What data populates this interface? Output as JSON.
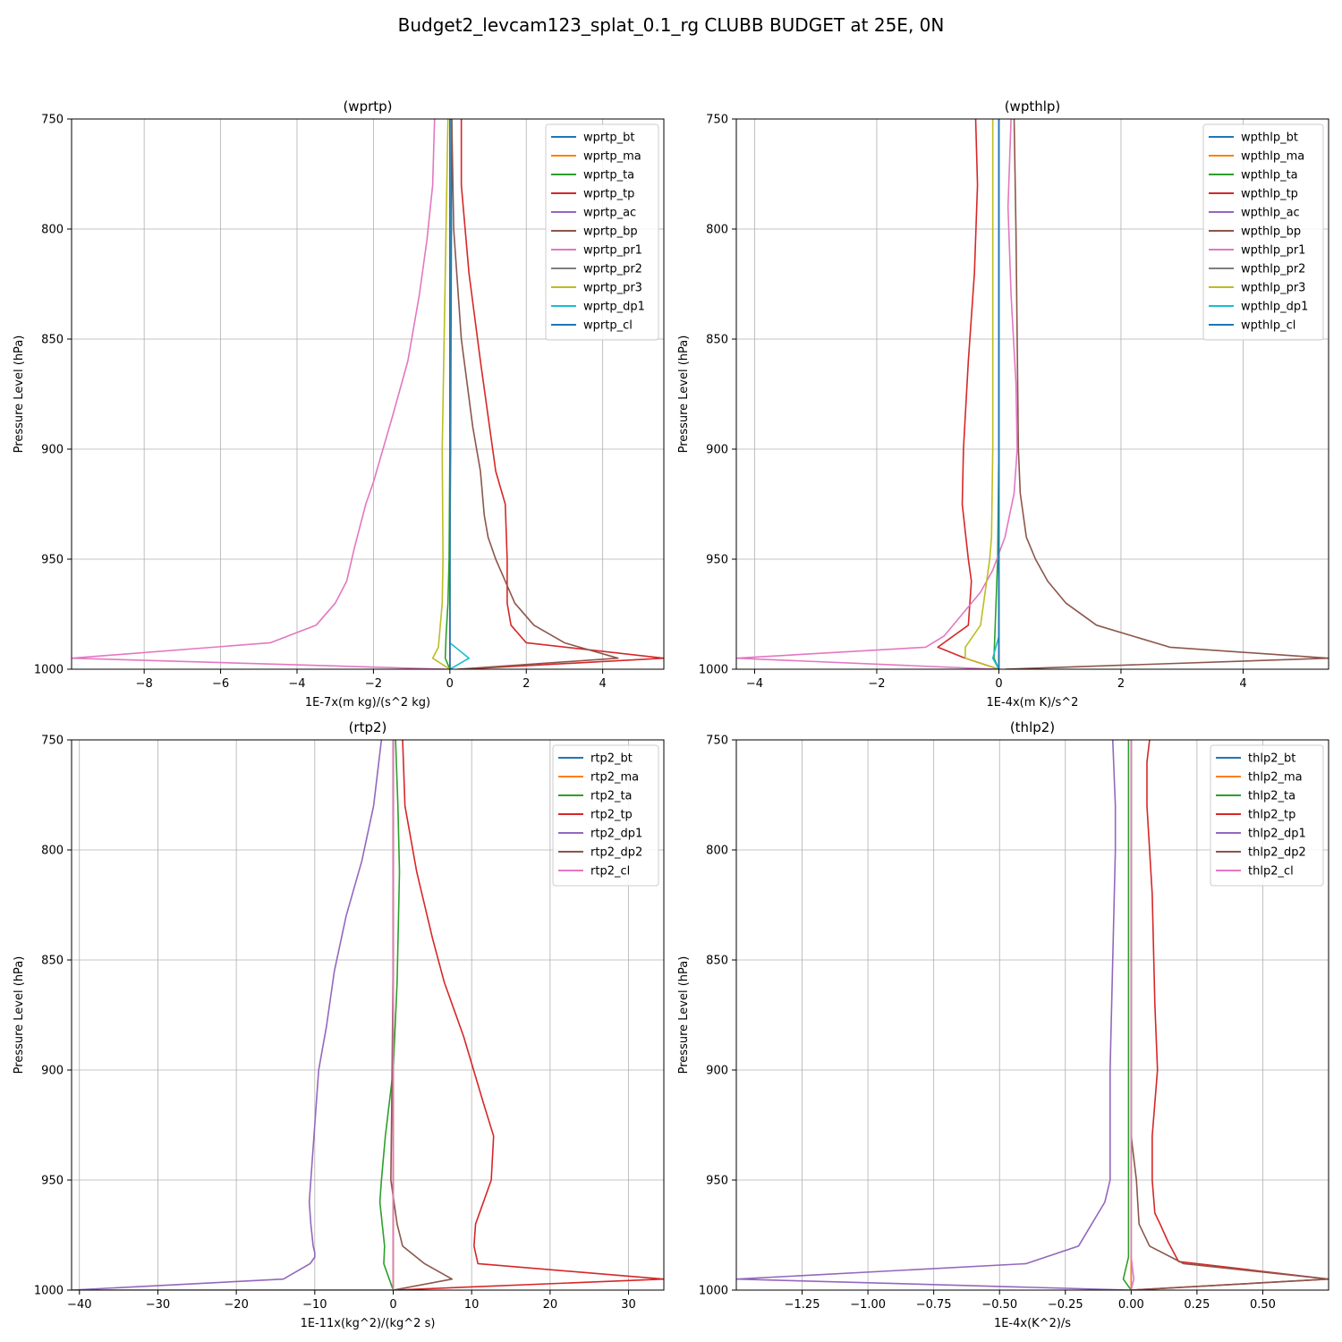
{
  "figure": {
    "title": "Budget2_levcam123_splat_0.1_rg CLUBB BUDGET at 25E, 0N"
  },
  "chart_data": [
    {
      "type": "line",
      "title": "(wprtp)",
      "xlabel": "1E-7x(m kg)/(s^2 kg)",
      "ylabel": "Pressure Level (hPa)",
      "xlim": [
        -9.9,
        5.6
      ],
      "ylim": [
        1000,
        750
      ],
      "y_inverted": true,
      "xticks": [
        -8,
        -6,
        -4,
        -2,
        0,
        2,
        4
      ],
      "yticks": [
        750,
        800,
        850,
        900,
        950,
        1000
      ],
      "grid": true,
      "legend": "upper right",
      "series": [
        {
          "name": "wprtp_bt",
          "color": "#1f77b4",
          "x": [
            0.05,
            0.04,
            0.03,
            0.02,
            0.0,
            0.0,
            0.0,
            0.0
          ],
          "y": [
            750,
            800,
            850,
            900,
            950,
            985,
            995,
            1000
          ]
        },
        {
          "name": "wprtp_ma",
          "color": "#ff7f0e",
          "x": [
            0.0,
            0.0,
            0.0,
            0.0,
            0.0,
            0.0,
            0.0
          ],
          "y": [
            750,
            800,
            850,
            900,
            950,
            995,
            1000
          ]
        },
        {
          "name": "wprtp_ta",
          "color": "#2ca02c",
          "x": [
            0.0,
            0.0,
            0.0,
            0.0,
            -0.02,
            -0.05,
            -0.1,
            -0.12,
            0.0
          ],
          "y": [
            750,
            800,
            850,
            900,
            950,
            970,
            985,
            995,
            1000
          ]
        },
        {
          "name": "wprtp_tp",
          "color": "#d62728",
          "x": [
            0.3,
            0.3,
            0.5,
            0.8,
            1.2,
            1.45,
            1.5,
            1.5,
            1.6,
            2.0,
            5.6,
            0.3
          ],
          "y": [
            750,
            780,
            820,
            860,
            910,
            925,
            950,
            970,
            980,
            988,
            995,
            1000
          ]
        },
        {
          "name": "wprtp_ac",
          "color": "#9467bd",
          "x": [
            0.0,
            0.0,
            0.0,
            0.0,
            0.0,
            0.0
          ],
          "y": [
            750,
            800,
            850,
            900,
            950,
            1000
          ]
        },
        {
          "name": "wprtp_bp",
          "color": "#8c564b",
          "x": [
            0.05,
            0.1,
            0.3,
            0.6,
            0.8,
            0.9,
            1.0,
            1.2,
            1.7,
            2.2,
            3.0,
            4.4,
            0.2
          ],
          "y": [
            750,
            800,
            850,
            890,
            910,
            930,
            940,
            950,
            970,
            980,
            988,
            995,
            1000
          ]
        },
        {
          "name": "wprtp_pr1",
          "color": "#e377c2",
          "x": [
            -0.4,
            -0.45,
            -0.6,
            -0.8,
            -1.1,
            -1.5,
            -2.0,
            -2.2,
            -2.5,
            -2.7,
            -3.0,
            -3.5,
            -4.7,
            -9.9,
            -0.1
          ],
          "y": [
            750,
            780,
            805,
            830,
            860,
            885,
            915,
            925,
            945,
            960,
            970,
            980,
            988,
            995,
            1000
          ]
        },
        {
          "name": "wprtp_pr2",
          "color": "#7f7f7f",
          "x": [
            0.0,
            0.0,
            0.0,
            0.0,
            0.0,
            0.0
          ],
          "y": [
            750,
            800,
            850,
            900,
            950,
            1000
          ]
        },
        {
          "name": "wprtp_pr3",
          "color": "#bcbd22",
          "x": [
            -0.05,
            -0.1,
            -0.15,
            -0.2,
            -0.18,
            -0.2,
            -0.25,
            -0.3,
            -0.45,
            0.0
          ],
          "y": [
            750,
            800,
            850,
            900,
            950,
            970,
            980,
            990,
            995,
            1000
          ]
        },
        {
          "name": "wprtp_dp1",
          "color": "#17becf",
          "x": [
            0.0,
            0.0,
            0.0,
            0.0,
            0.0,
            0.5,
            0.0
          ],
          "y": [
            750,
            850,
            950,
            980,
            988,
            995,
            1000
          ]
        },
        {
          "name": "wprtp_cl",
          "color": "#1f77b4",
          "x": [
            0.0,
            0.0,
            0.0,
            0.0,
            0.0,
            0.0
          ],
          "y": [
            750,
            800,
            850,
            900,
            950,
            1000
          ]
        }
      ]
    },
    {
      "type": "line",
      "title": "(wpthlp)",
      "xlabel": "1E-4x(m K)/s^2",
      "ylabel": "Pressure Level (hPa)",
      "xlim": [
        -4.3,
        5.4
      ],
      "ylim": [
        1000,
        750
      ],
      "y_inverted": true,
      "xticks": [
        -4,
        -2,
        0,
        2,
        4
      ],
      "yticks": [
        750,
        800,
        850,
        900,
        950,
        1000
      ],
      "grid": true,
      "legend": "upper right",
      "series": [
        {
          "name": "wpthlp_bt",
          "color": "#1f77b4",
          "x": [
            0.0,
            0.0,
            0.0,
            0.0,
            0.0,
            0.0
          ],
          "y": [
            750,
            800,
            850,
            900,
            950,
            1000
          ]
        },
        {
          "name": "wpthlp_ma",
          "color": "#ff7f0e",
          "x": [
            0.0,
            0.0,
            0.0,
            0.0,
            0.0,
            0.0
          ],
          "y": [
            750,
            800,
            850,
            900,
            950,
            1000
          ]
        },
        {
          "name": "wpthlp_ta",
          "color": "#2ca02c",
          "x": [
            0.0,
            0.0,
            0.0,
            0.0,
            -0.02,
            -0.06,
            -0.08,
            0.0
          ],
          "y": [
            750,
            800,
            850,
            900,
            950,
            980,
            995,
            1000
          ]
        },
        {
          "name": "wpthlp_tp",
          "color": "#d62728",
          "x": [
            -0.38,
            -0.35,
            -0.4,
            -0.5,
            -0.58,
            -0.6,
            -0.5,
            -0.45,
            -0.5,
            -1.0,
            -0.55,
            0.0
          ],
          "y": [
            750,
            780,
            820,
            860,
            900,
            925,
            950,
            960,
            980,
            990,
            995,
            1000
          ]
        },
        {
          "name": "wpthlp_ac",
          "color": "#9467bd",
          "x": [
            0.0,
            0.0,
            0.0,
            0.0,
            0.0,
            0.0
          ],
          "y": [
            750,
            800,
            850,
            900,
            950,
            1000
          ]
        },
        {
          "name": "wpthlp_bp",
          "color": "#8c564b",
          "x": [
            0.25,
            0.28,
            0.3,
            0.32,
            0.35,
            0.45,
            0.6,
            0.8,
            1.1,
            1.6,
            2.8,
            5.4,
            0.1
          ],
          "y": [
            750,
            800,
            850,
            900,
            920,
            940,
            950,
            960,
            970,
            980,
            990,
            995,
            1000
          ]
        },
        {
          "name": "wpthlp_pr1",
          "color": "#e377c2",
          "x": [
            0.2,
            0.15,
            0.2,
            0.28,
            0.3,
            0.25,
            0.1,
            -0.1,
            -0.3,
            -0.6,
            -0.9,
            -1.2,
            -4.3,
            -0.05
          ],
          "y": [
            750,
            790,
            830,
            870,
            900,
            920,
            940,
            955,
            965,
            975,
            985,
            990,
            995,
            1000
          ]
        },
        {
          "name": "wpthlp_pr2",
          "color": "#7f7f7f",
          "x": [
            0.0,
            0.0,
            0.0,
            0.0,
            0.0,
            0.0
          ],
          "y": [
            750,
            800,
            850,
            900,
            950,
            1000
          ]
        },
        {
          "name": "wpthlp_pr3",
          "color": "#bcbd22",
          "x": [
            -0.1,
            -0.1,
            -0.1,
            -0.1,
            -0.12,
            -0.15,
            -0.2,
            -0.3,
            -0.55,
            -0.55,
            0.0
          ],
          "y": [
            750,
            800,
            850,
            900,
            940,
            950,
            960,
            980,
            990,
            995,
            1000
          ]
        },
        {
          "name": "wpthlp_dp1",
          "color": "#17becf",
          "x": [
            0.0,
            0.0,
            0.0,
            0.0,
            -0.1,
            0.0
          ],
          "y": [
            750,
            850,
            950,
            985,
            995,
            1000
          ]
        },
        {
          "name": "wpthlp_cl",
          "color": "#1f77b4",
          "x": [
            0.0,
            0.0,
            0.0,
            0.0,
            0.0,
            0.0
          ],
          "y": [
            750,
            800,
            850,
            900,
            950,
            1000
          ]
        }
      ]
    },
    {
      "type": "line",
      "title": "(rtp2)",
      "xlabel": "1E-11x(kg^2)/(kg^2 s)",
      "ylabel": "Pressure Level (hPa)",
      "xlim": [
        -41,
        34.5
      ],
      "ylim": [
        1000,
        750
      ],
      "y_inverted": true,
      "xticks": [
        -40,
        -30,
        -20,
        -10,
        0,
        10,
        20,
        30
      ],
      "yticks": [
        750,
        800,
        850,
        900,
        950,
        1000
      ],
      "grid": true,
      "legend": "upper right",
      "series": [
        {
          "name": "rtp2_bt",
          "color": "#1f77b4",
          "x": [
            0.0,
            0.0,
            0.0,
            0.0,
            0.0,
            0.0
          ],
          "y": [
            750,
            800,
            850,
            900,
            950,
            1000
          ]
        },
        {
          "name": "rtp2_ma",
          "color": "#ff7f0e",
          "x": [
            0.0,
            0.0,
            0.0,
            0.0,
            0.0,
            0.0
          ],
          "y": [
            750,
            800,
            850,
            900,
            950,
            1000
          ]
        },
        {
          "name": "rtp2_ta",
          "color": "#2ca02c",
          "x": [
            0.3,
            0.6,
            0.8,
            0.5,
            0.0,
            -1.0,
            -1.5,
            -1.7,
            -1.4,
            -1.1,
            -1.2,
            -0.5,
            0.0
          ],
          "y": [
            750,
            780,
            810,
            860,
            900,
            930,
            950,
            960,
            970,
            980,
            988,
            995,
            1000
          ]
        },
        {
          "name": "rtp2_tp",
          "color": "#d62728",
          "x": [
            1.2,
            1.5,
            3.0,
            5.0,
            6.5,
            9.0,
            11.5,
            12.8,
            12.5,
            10.5,
            10.3,
            10.8,
            34.5,
            0.0
          ],
          "y": [
            750,
            780,
            810,
            840,
            860,
            885,
            915,
            930,
            950,
            970,
            980,
            988,
            995,
            1000
          ]
        },
        {
          "name": "rtp2_dp1",
          "color": "#9467bd",
          "x": [
            -1.5,
            -2.5,
            -4.0,
            -6.0,
            -7.5,
            -8.5,
            -9.5,
            -10.0,
            -10.5,
            -10.7,
            -10.5,
            -10.2,
            -10.0,
            -10.0,
            -10.6,
            -14.0,
            -41.0,
            0.0
          ],
          "y": [
            750,
            780,
            805,
            830,
            855,
            880,
            900,
            925,
            950,
            960,
            970,
            980,
            983,
            985,
            988,
            995,
            1000,
            1000
          ]
        },
        {
          "name": "rtp2_dp2",
          "color": "#8c564b",
          "x": [
            0.0,
            0.0,
            -0.2,
            -0.3,
            0.5,
            1.2,
            4.0,
            7.5,
            0.0
          ],
          "y": [
            750,
            850,
            920,
            950,
            970,
            980,
            988,
            995,
            1000
          ]
        },
        {
          "name": "rtp2_cl",
          "color": "#e377c2",
          "x": [
            0.0,
            0.0,
            0.0,
            0.0,
            0.0,
            0.0
          ],
          "y": [
            750,
            800,
            850,
            900,
            950,
            1000
          ]
        }
      ]
    },
    {
      "type": "line",
      "title": "(thlp2)",
      "xlabel": "1E-4x(K^2)/s",
      "ylabel": "Pressure Level (hPa)",
      "xlim": [
        -1.5,
        0.75
      ],
      "ylim": [
        1000,
        750
      ],
      "y_inverted": true,
      "xticks": [
        -1.25,
        -1.0,
        -0.75,
        -0.5,
        -0.25,
        0.0,
        0.25,
        0.5
      ],
      "yticks": [
        750,
        800,
        850,
        900,
        950,
        1000
      ],
      "grid": true,
      "legend": "upper right",
      "series": [
        {
          "name": "thlp2_bt",
          "color": "#1f77b4",
          "x": [
            0.0,
            0.0,
            0.0,
            0.0,
            0.0,
            0.0
          ],
          "y": [
            750,
            800,
            850,
            900,
            950,
            1000
          ]
        },
        {
          "name": "thlp2_ma",
          "color": "#ff7f0e",
          "x": [
            0.0,
            0.0,
            0.0,
            0.0,
            0.0,
            0.0
          ],
          "y": [
            750,
            800,
            850,
            900,
            950,
            1000
          ]
        },
        {
          "name": "thlp2_ta",
          "color": "#2ca02c",
          "x": [
            -0.01,
            -0.01,
            -0.01,
            -0.01,
            -0.01,
            -0.01,
            -0.03,
            0.0
          ],
          "y": [
            750,
            800,
            850,
            900,
            950,
            985,
            995,
            1000
          ]
        },
        {
          "name": "thlp2_tp",
          "color": "#d62728",
          "x": [
            0.07,
            0.06,
            0.06,
            0.08,
            0.09,
            0.1,
            0.09,
            0.08,
            0.08,
            0.09,
            0.11,
            0.14,
            0.18,
            0.75,
            0.0
          ],
          "y": [
            750,
            760,
            780,
            820,
            870,
            900,
            915,
            930,
            950,
            965,
            970,
            978,
            987,
            995,
            1000
          ]
        },
        {
          "name": "thlp2_dp1",
          "color": "#9467bd",
          "x": [
            -0.07,
            -0.06,
            -0.06,
            -0.07,
            -0.08,
            -0.08,
            -0.08,
            -0.09,
            -0.1,
            -0.15,
            -0.2,
            -0.4,
            -1.5,
            0.0
          ],
          "y": [
            750,
            780,
            800,
            850,
            900,
            930,
            950,
            955,
            960,
            970,
            980,
            988,
            995,
            1000
          ]
        },
        {
          "name": "thlp2_dp2",
          "color": "#8c564b",
          "x": [
            0.0,
            0.0,
            0.0,
            0.02,
            0.03,
            0.07,
            0.2,
            0.75,
            0.0
          ],
          "y": [
            750,
            850,
            930,
            950,
            970,
            980,
            988,
            995,
            1000
          ]
        },
        {
          "name": "thlp2_cl",
          "color": "#e377c2",
          "x": [
            0.0,
            0.0,
            0.0,
            0.0,
            0.0,
            0.0,
            0.01,
            0.0
          ],
          "y": [
            750,
            800,
            850,
            900,
            950,
            985,
            995,
            1000
          ]
        }
      ]
    }
  ]
}
